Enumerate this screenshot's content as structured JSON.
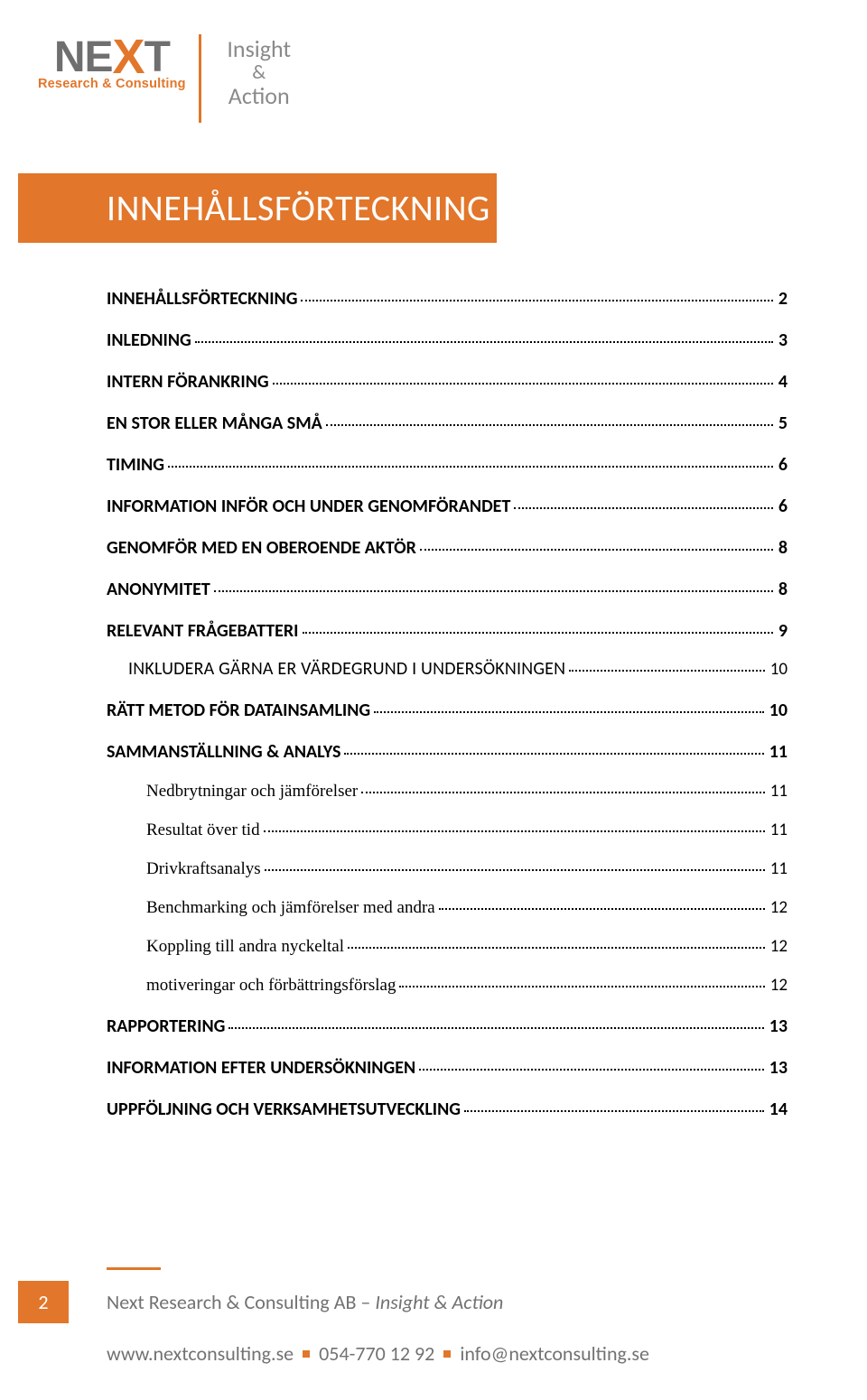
{
  "logo": {
    "main_pre": "NE",
    "main_x": "X",
    "main_post": "T",
    "sub": "Research & Consulting",
    "right_top": "Insight",
    "right_mid": "&",
    "right_bot": "Action"
  },
  "title": "INNEHÅLLSFÖRTECKNING",
  "colors": {
    "accent": "#e2762a",
    "grey_text": "#727272",
    "logo_grey": "#6f6f6f",
    "logo_right_grey": "#8a8a8a",
    "black": "#000000",
    "white": "#ffffff"
  },
  "toc": [
    {
      "level": 1,
      "label": "INNEHÅLLSFÖRTECKNING",
      "page": "2"
    },
    {
      "level": 1,
      "label": "INLEDNING",
      "page": "3"
    },
    {
      "level": 1,
      "label": "INTERN FÖRANKRING",
      "page": "4"
    },
    {
      "level": 1,
      "label": "EN STOR ELLER MÅNGA SMÅ",
      "page": "5"
    },
    {
      "level": 1,
      "label": "TIMING",
      "page": "6"
    },
    {
      "level": 1,
      "label": "INFORMATION INFÖR OCH UNDER GENOMFÖRANDET",
      "page": "6"
    },
    {
      "level": 1,
      "label": "GENOMFÖR MED EN OBEROENDE AKTÖR",
      "page": "8"
    },
    {
      "level": 1,
      "label": "ANONYMITET",
      "page": "8"
    },
    {
      "level": 1,
      "label": "RELEVANT FRÅGEBATTERI",
      "page": "9"
    },
    {
      "level": 2,
      "label": "INKLUDERA GÄRNA ER VÄRDEGRUND I UNDERSÖKNINGEN",
      "page": "10"
    },
    {
      "level": 1,
      "label": "RÄTT METOD FÖR DATAINSAMLING",
      "page": "10"
    },
    {
      "level": 1,
      "label": "SAMMANSTÄLLNING & ANALYS",
      "page": "11"
    },
    {
      "level": 3,
      "label": "Nedbrytningar och jämförelser",
      "page": "11"
    },
    {
      "level": 3,
      "label": "Resultat över tid",
      "page": "11"
    },
    {
      "level": 3,
      "label": "Drivkraftsanalys",
      "page": "11"
    },
    {
      "level": 3,
      "label": "Benchmarking och jämförelser med andra",
      "page": "12"
    },
    {
      "level": 3,
      "label": "Koppling till andra nyckeltal",
      "page": "12"
    },
    {
      "level": 3,
      "label": "motiveringar och förbättringsförslag",
      "page": "12"
    },
    {
      "level": 1,
      "label": "RAPPORTERING",
      "page": "13"
    },
    {
      "level": 1,
      "label": "INFORMATION EFTER UNDERSÖKNINGEN",
      "page": "13"
    },
    {
      "level": 1,
      "label": "UPPFÖLJNING OCH VERKSAMHETSUTVECKLING",
      "page": "14"
    }
  ],
  "footer": {
    "page_number": "2",
    "line1_a": "Next Research & Consulting AB – ",
    "line1_b": "Insight & Action",
    "site": "www.nextconsulting.se",
    "phone": "054-770 12 92",
    "email": "info@nextconsulting.se"
  }
}
